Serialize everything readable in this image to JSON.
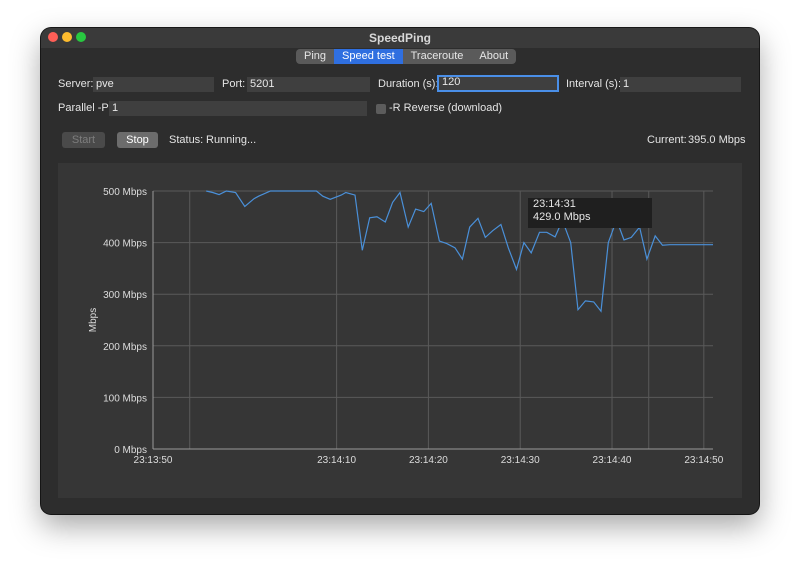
{
  "window": {
    "title": "SpeedPing"
  },
  "tabs": [
    {
      "label": "Ping",
      "active": false
    },
    {
      "label": "Speed test",
      "active": true
    },
    {
      "label": "Traceroute",
      "active": false
    },
    {
      "label": "About",
      "active": false
    }
  ],
  "form": {
    "server_label": "Server:",
    "server_value": "pve",
    "port_label": "Port:",
    "port_value": "5201",
    "duration_label": "Duration (s):",
    "duration_value": "120",
    "interval_label": "Interval (s):",
    "interval_value": "1",
    "parallel_label": "Parallel -P:",
    "parallel_value": "1",
    "reverse_label": "-R Reverse (download)"
  },
  "controls": {
    "start_label": "Start",
    "stop_label": "Stop",
    "status_label": "Status:",
    "status_value": "Running...",
    "current_label": "Current:",
    "current_value": "395.0 Mbps"
  },
  "tooltip": {
    "time": "23:14:31",
    "value": "429.0 Mbps"
  },
  "colors": {
    "line": "#4a90d9",
    "accent": "#2f6fe0"
  },
  "chart_data": {
    "type": "line",
    "ylabel": "Mbps",
    "xlabel": "",
    "ylim": [
      0,
      500
    ],
    "y_ticks": [
      0,
      100,
      200,
      300,
      400,
      500
    ],
    "y_tick_labels": [
      "0 Mbps",
      "100 Mbps",
      "200 Mbps",
      "300 Mbps",
      "400 Mbps",
      "500 Mbps"
    ],
    "x_range_seconds": [
      0,
      61
    ],
    "x_ticks": [
      0,
      20,
      30,
      40,
      50,
      60
    ],
    "x_tick_labels": [
      "23:13:50",
      "23:14:10",
      "23:14:20",
      "23:14:30",
      "23:14:40",
      "23:14:50"
    ],
    "grid": true,
    "series": [
      {
        "x": [
          5.8,
          6.5,
          7.2,
          8.0,
          9.0,
          10.0,
          11.0,
          11.5,
          12.8,
          17.8,
          18.5,
          19.3,
          20.5,
          21.0,
          22.0,
          22.8,
          23.6,
          24.4,
          25.3,
          26.1,
          26.9,
          27.8,
          28.6,
          29.5,
          30.3,
          31.2,
          32.0,
          32.9,
          33.7,
          34.5,
          35.4,
          36.2,
          37.0,
          37.9,
          38.7,
          39.6,
          40.4,
          41.2,
          42.1,
          42.9,
          43.8,
          44.6,
          45.5,
          46.3,
          47.1,
          48.0,
          48.8,
          49.6,
          50.5,
          51.3,
          52.1,
          53.0,
          53.8,
          54.7,
          55.5,
          56.3,
          57.2,
          58.0,
          58.8,
          59.7,
          60.5,
          61.0
        ],
        "y": [
          500,
          497,
          493,
          500,
          497,
          470,
          485,
          490,
          500,
          500,
          490,
          484,
          492,
          497,
          492,
          385,
          448,
          450,
          440,
          478,
          497,
          430,
          465,
          460,
          476,
          403,
          398,
          390,
          368,
          430,
          447,
          410,
          423,
          435,
          390,
          348,
          400,
          380,
          420,
          420,
          411,
          443,
          400,
          270,
          287,
          285,
          267,
          400,
          444,
          405,
          410,
          430,
          368,
          413,
          395,
          396,
          396,
          396,
          396,
          396,
          396,
          396
        ]
      }
    ]
  }
}
